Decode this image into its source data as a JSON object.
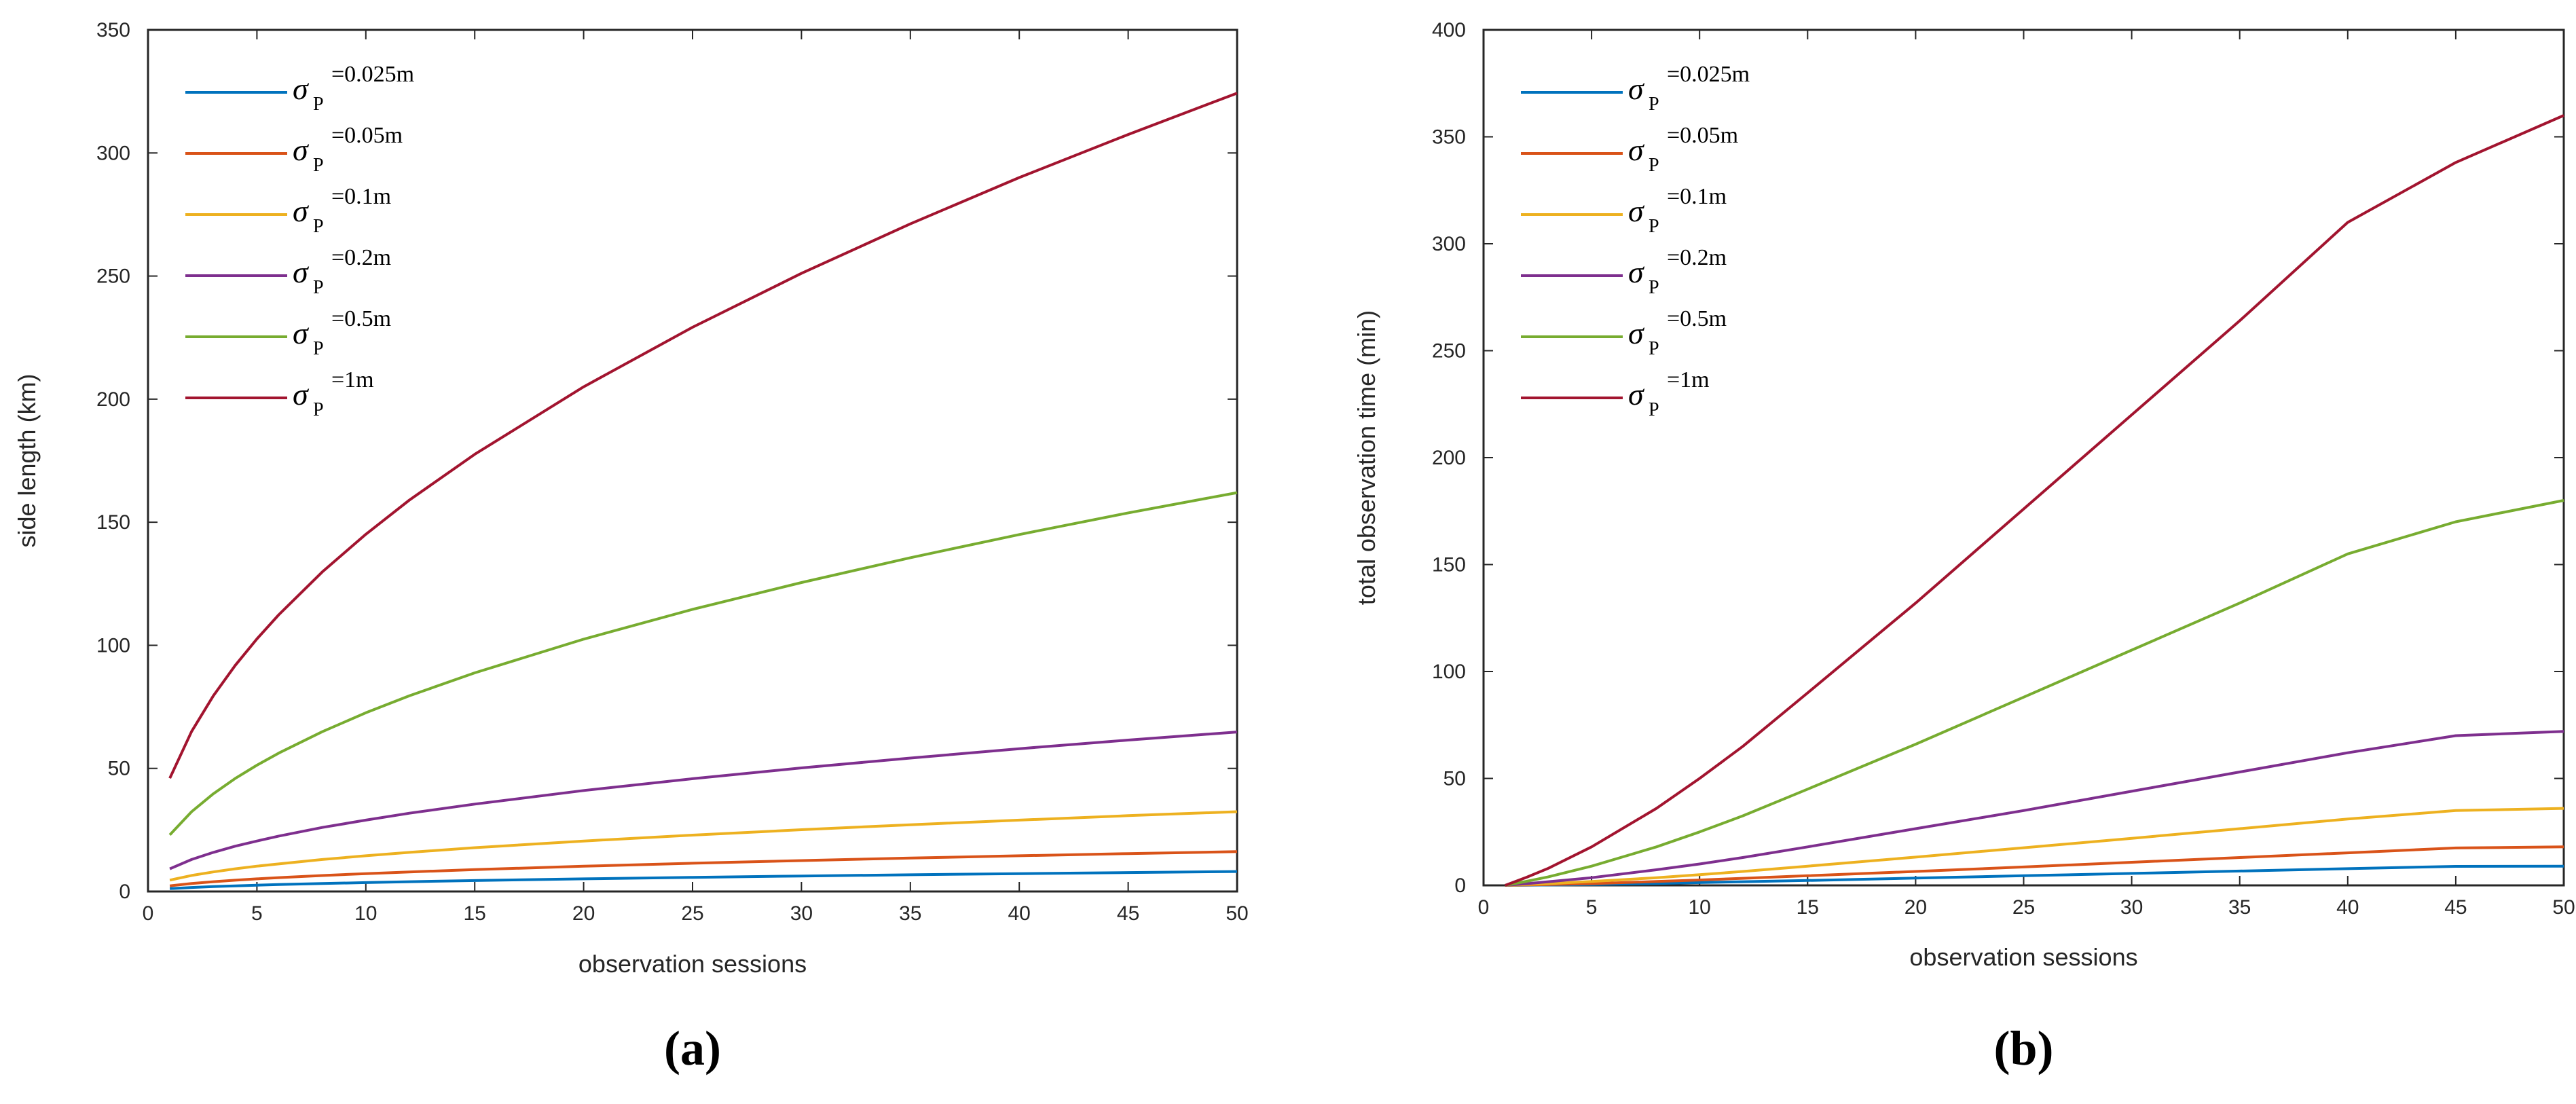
{
  "chart_data": [
    {
      "type": "line",
      "panel_label": "(a)",
      "xlabel": "observation sessions",
      "ylabel": "side length (km)",
      "xlim": [
        0,
        50
      ],
      "ylim": [
        0,
        350
      ],
      "xticks": [
        "0",
        "5",
        "10",
        "15",
        "20",
        "25",
        "30",
        "35",
        "40",
        "45",
        "50"
      ],
      "yticks": [
        "0",
        "50",
        "100",
        "150",
        "200",
        "250",
        "300",
        "350"
      ],
      "grid": false,
      "legend": "top-left",
      "x": [
        1,
        2,
        3,
        4,
        5,
        6,
        8,
        10,
        12,
        15,
        20,
        25,
        30,
        35,
        40,
        45,
        50
      ],
      "series": [
        {
          "symbol": "σ",
          "subscript": "P",
          "value_label": "=0.025m",
          "color": "#0072BD",
          "values": [
            1.15,
            1.62,
            1.99,
            2.29,
            2.56,
            2.81,
            3.24,
            3.62,
            3.97,
            4.44,
            5.12,
            5.73,
            6.28,
            6.78,
            7.25,
            7.69,
            8.1
          ]
        },
        {
          "symbol": "σ",
          "subscript": "P",
          "value_label": "=0.05m",
          "color": "#D95319",
          "values": [
            2.3,
            3.25,
            3.98,
            4.59,
            5.13,
            5.62,
            6.49,
            7.25,
            7.95,
            8.88,
            10.25,
            11.46,
            12.55,
            13.56,
            14.5,
            15.38,
            16.2
          ]
        },
        {
          "symbol": "σ",
          "subscript": "P",
          "value_label": "=0.1m",
          "color": "#EDB120",
          "values": [
            4.6,
            6.5,
            7.95,
            9.2,
            10.3,
            11.2,
            13.0,
            14.5,
            15.9,
            17.8,
            20.5,
            22.9,
            25.1,
            27.1,
            29.0,
            30.8,
            32.4
          ]
        },
        {
          "symbol": "σ",
          "subscript": "P",
          "value_label": "=0.2m",
          "color": "#7E2F8E",
          "values": [
            9.2,
            13.0,
            15.9,
            18.4,
            20.5,
            22.5,
            26.0,
            29.0,
            31.8,
            35.5,
            41.0,
            45.8,
            50.2,
            54.2,
            58.0,
            61.5,
            64.8
          ]
        },
        {
          "symbol": "σ",
          "subscript": "P",
          "value_label": "=0.5m",
          "color": "#77AC30",
          "values": [
            23.0,
            32.4,
            39.7,
            45.9,
            51.3,
            56.2,
            64.9,
            72.6,
            79.5,
            88.8,
            102.5,
            114.6,
            125.5,
            135.6,
            145.0,
            153.8,
            162.0
          ]
        },
        {
          "symbol": "σ",
          "subscript": "P",
          "value_label": "=1m",
          "color": "#A2142F",
          "values": [
            46.0,
            65.0,
            79.5,
            91.8,
            102.6,
            112.4,
            129.8,
            145.1,
            159.0,
            177.6,
            205.0,
            229.2,
            251.1,
            271.2,
            290.0,
            307.5,
            324.3
          ]
        }
      ]
    },
    {
      "type": "line",
      "panel_label": "(b)",
      "xlabel": "observation sessions",
      "ylabel": "total observation time (min)",
      "xlim": [
        0,
        50
      ],
      "ylim": [
        0,
        400
      ],
      "xticks": [
        "0",
        "5",
        "10",
        "15",
        "20",
        "25",
        "30",
        "35",
        "40",
        "45",
        "50"
      ],
      "yticks": [
        "0",
        "50",
        "100",
        "150",
        "200",
        "250",
        "300",
        "350",
        "400"
      ],
      "grid": false,
      "legend": "top-left",
      "x": [
        1,
        2,
        3,
        5,
        8,
        10,
        12,
        15,
        20,
        25,
        30,
        35,
        40,
        45,
        50
      ],
      "series": [
        {
          "symbol": "σ",
          "subscript": "P",
          "value_label": "=0.025m",
          "color": "#0072BD",
          "values": [
            0.0,
            0.1,
            0.2,
            0.4,
            0.9,
            1.3,
            1.7,
            2.3,
            3.4,
            4.5,
            5.6,
            6.7,
            7.8,
            8.9,
            9.0
          ]
        },
        {
          "symbol": "σ",
          "subscript": "P",
          "value_label": "=0.05m",
          "color": "#D95319",
          "values": [
            0.0,
            0.2,
            0.4,
            0.8,
            1.8,
            2.5,
            3.3,
            4.5,
            6.5,
            8.6,
            10.8,
            13.0,
            15.2,
            17.5,
            18.0
          ]
        },
        {
          "symbol": "σ",
          "subscript": "P",
          "value_label": "=0.1m",
          "color": "#EDB120",
          "values": [
            0.0,
            0.4,
            0.8,
            1.8,
            3.6,
            5.0,
            6.5,
            9.0,
            13.2,
            17.6,
            22.0,
            26.5,
            31.0,
            35.0,
            36.0
          ]
        },
        {
          "symbol": "σ",
          "subscript": "P",
          "value_label": "=0.2m",
          "color": "#7E2F8E",
          "values": [
            0.0,
            0.8,
            1.7,
            3.6,
            7.3,
            10.0,
            13.0,
            18.0,
            26.5,
            35.0,
            44.0,
            53.0,
            62.0,
            70.0,
            72.0
          ]
        },
        {
          "symbol": "σ",
          "subscript": "P",
          "value_label": "=0.5m",
          "color": "#77AC30",
          "values": [
            0.0,
            1.9,
            4.0,
            9.0,
            18.0,
            25.0,
            32.5,
            45.0,
            66.0,
            88.0,
            110.0,
            132.0,
            155.0,
            170.0,
            180.0
          ]
        },
        {
          "symbol": "σ",
          "subscript": "P",
          "value_label": "=1m",
          "color": "#A2142F",
          "values": [
            0.0,
            3.8,
            8.0,
            18.0,
            36.0,
            50.0,
            65.0,
            90.0,
            132.0,
            176.0,
            220.0,
            264.0,
            310.0,
            338.0,
            360.0
          ]
        }
      ]
    }
  ]
}
